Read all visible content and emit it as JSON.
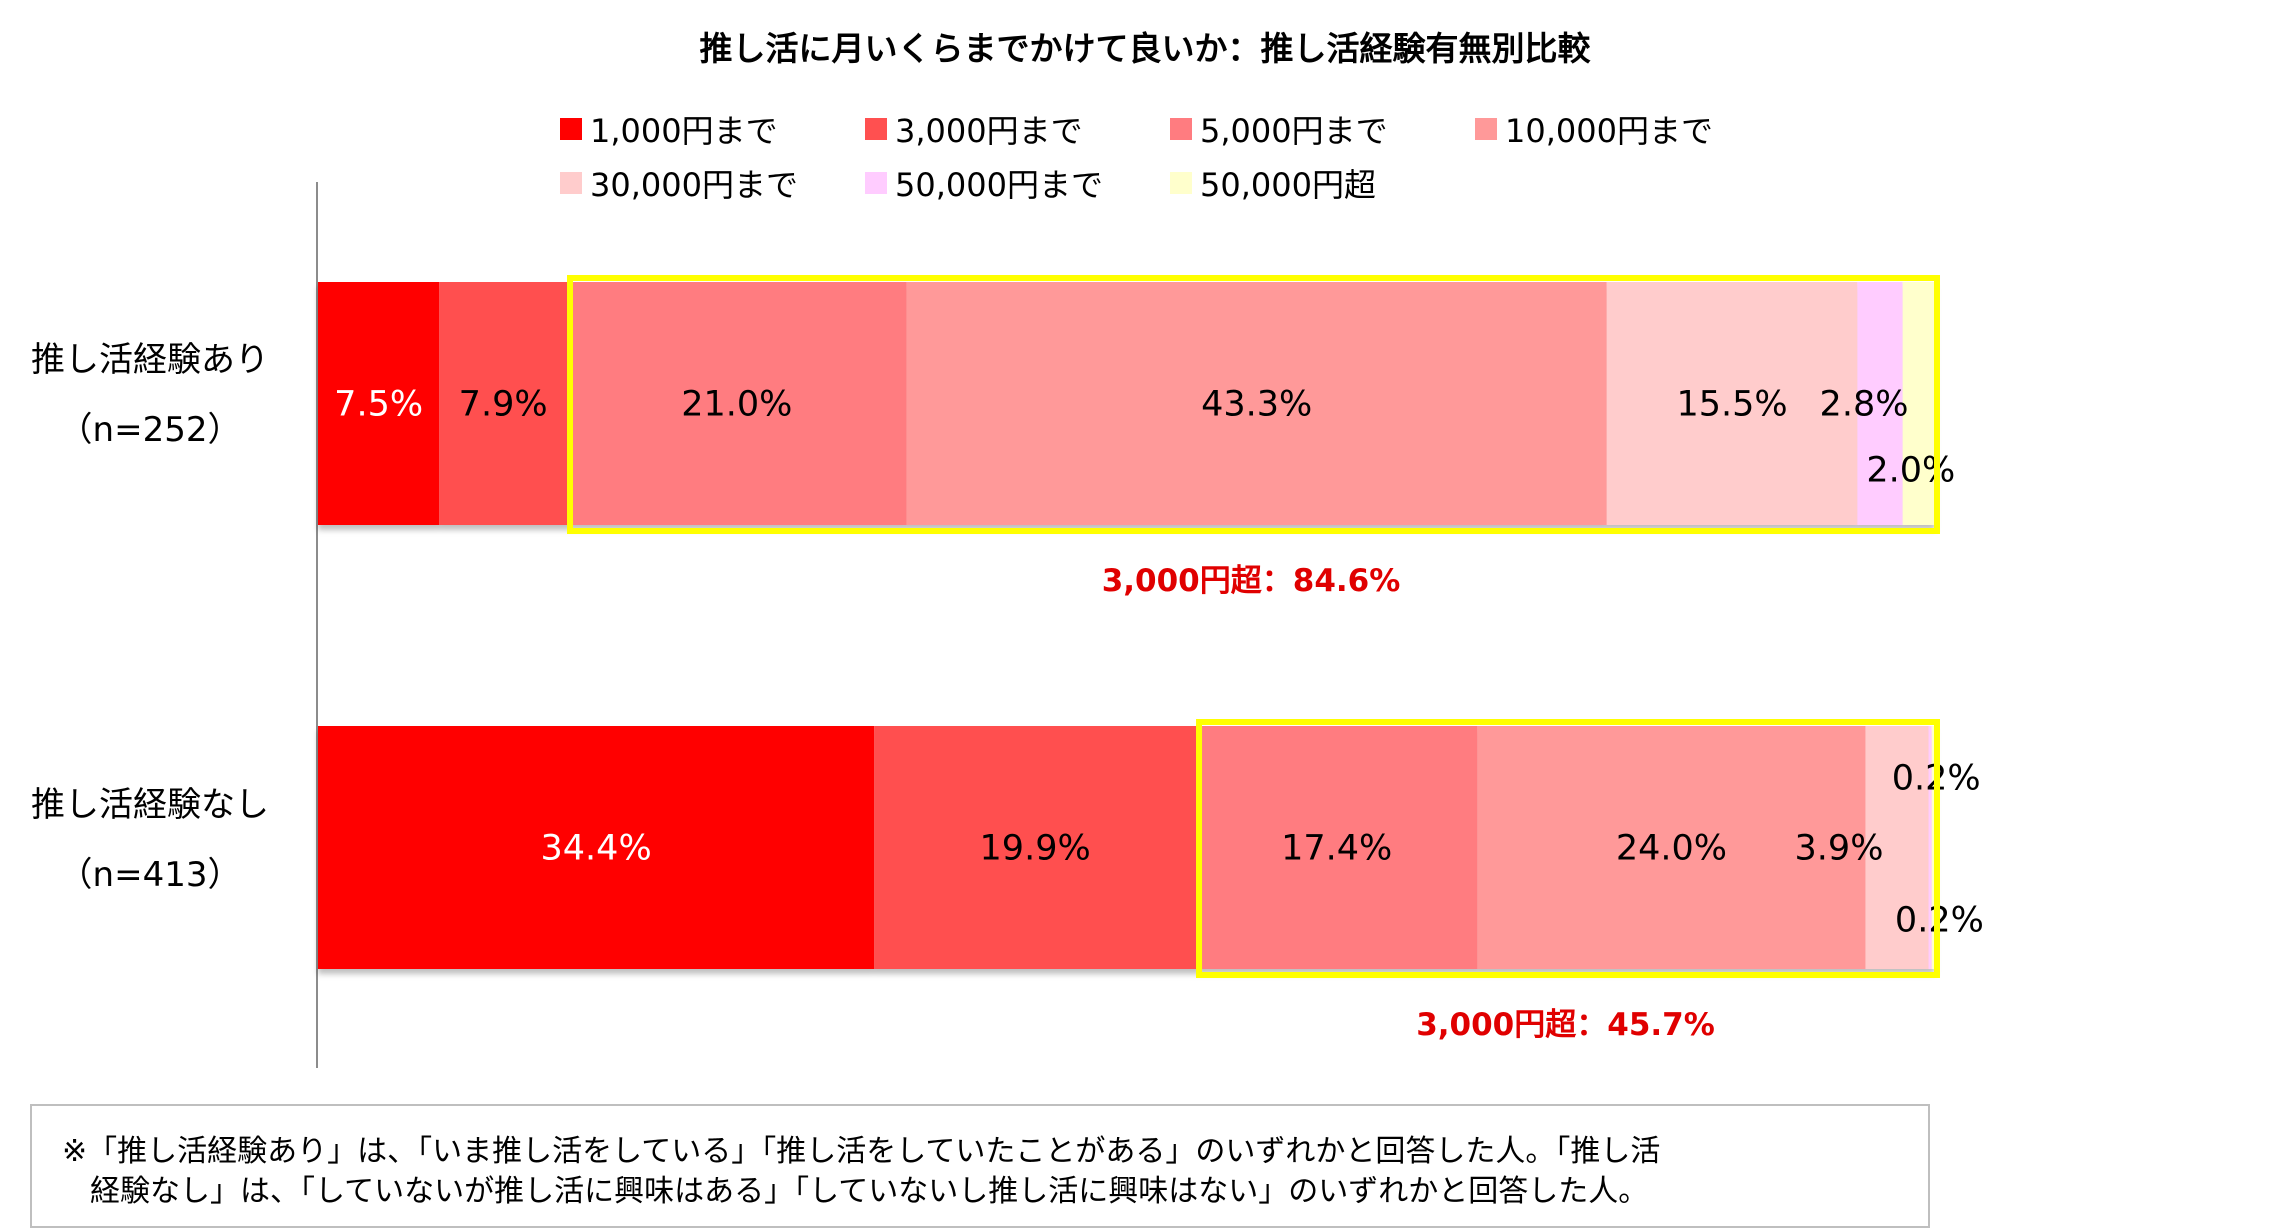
{
  "chart_data": {
    "type": "bar",
    "orientation": "horizontal",
    "stacked": "100%",
    "title": "推し活に月いくらまでかけて良いか：推し活経験有無別比較",
    "categories": [
      {
        "name": "推し活経験あり",
        "n": "（n=252）"
      },
      {
        "name": "推し活経験なし",
        "n": "（n=413）"
      }
    ],
    "series": [
      {
        "name": "1,000円まで",
        "color": "#ff0000",
        "values": [
          7.5,
          34.4
        ],
        "labels": [
          "7.5%",
          "34.4%"
        ],
        "text_colors": [
          "#ffffff",
          "#ffffff"
        ]
      },
      {
        "name": "3,000円まで",
        "color": "#ff5050",
        "values": [
          7.9,
          19.9
        ],
        "labels": [
          "7.9%",
          "19.9%"
        ],
        "text_colors": [
          "#000000",
          "#000000"
        ]
      },
      {
        "name": "5,000円まで",
        "color": "#ff7c80",
        "values": [
          21.0,
          17.4
        ],
        "labels": [
          "21.0%",
          "17.4%"
        ],
        "text_colors": [
          "#000000",
          "#000000"
        ]
      },
      {
        "name": "10,000円まで",
        "color": "#ff9999",
        "values": [
          43.3,
          24.0
        ],
        "labels": [
          "43.3%",
          "24.0%"
        ],
        "text_colors": [
          "#000000",
          "#000000"
        ]
      },
      {
        "name": "30,000円まで",
        "color": "#ffcccc",
        "values": [
          15.5,
          3.9
        ],
        "labels": [
          "15.5%",
          "3.9%"
        ],
        "text_colors": [
          "#000000",
          "#000000"
        ]
      },
      {
        "name": "50,000円まで",
        "color": "#ffccff",
        "values": [
          2.8,
          0.2
        ],
        "labels": [
          "2.8%",
          "0.2%"
        ],
        "text_colors": [
          "#000000",
          "#000000"
        ]
      },
      {
        "name": "50,000円超",
        "color": "#ffffcc",
        "values": [
          2.0,
          0.2
        ],
        "labels": [
          "2.0%",
          "0.2%"
        ],
        "text_colors": [
          "#000000",
          "#000000"
        ]
      }
    ],
    "highlights": [
      {
        "category_index": 0,
        "from_series": 2,
        "label": "3,000円超：84.6%",
        "color": "#ffff00"
      },
      {
        "category_index": 1,
        "from_series": 2,
        "label": "3,000円超：45.7%",
        "color": "#ffff00"
      }
    ],
    "xlim": [
      0,
      100
    ],
    "legend_position": "top"
  },
  "footnote": {
    "line1": "※「推し活経験あり」は、「いま推し活をしている」「推し活をしていたことがある」のいずれかと回答した人。「推し活",
    "line2": "経験なし」は、「していないが推し活に興味はある」「していないし推し活に興味はない」のいずれかと回答した人。"
  }
}
